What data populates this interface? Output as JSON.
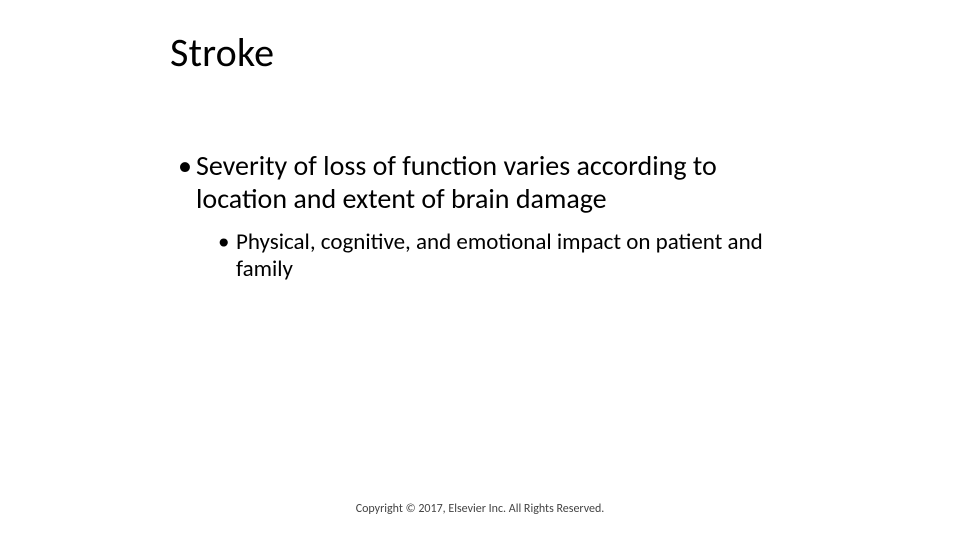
{
  "slide": {
    "title": "Stroke",
    "bullets": {
      "level1": {
        "marker": "•",
        "text": "Severity of loss of function varies according to location and extent of brain damage"
      },
      "level2": {
        "marker": "•",
        "text": "Physical, cognitive, and emotional impact on patient and family"
      }
    },
    "footer": "Copyright © 2017, Elsevier Inc. All Rights Reserved.",
    "colors": {
      "background": "#ffffff",
      "text": "#000000",
      "footer_text": "#444444"
    },
    "typography": {
      "title_fontsize": 40,
      "level1_fontsize": 28,
      "level2_fontsize": 23,
      "footer_fontsize": 12,
      "font_family": "Calibri"
    }
  }
}
